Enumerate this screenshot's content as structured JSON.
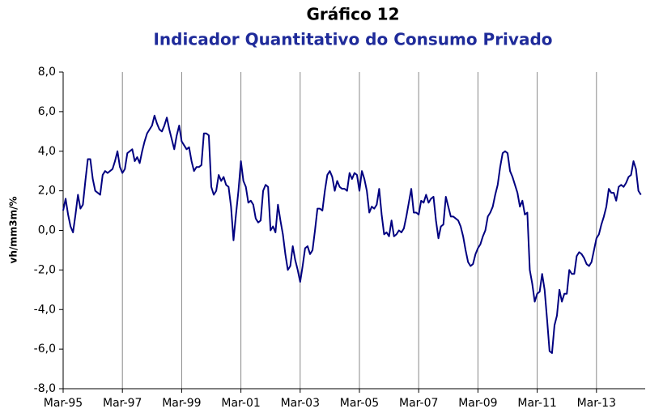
{
  "chart_data": {
    "type": "line",
    "title": "Gráfico 12",
    "subtitle": "Indicador Quantitativo do Consumo Privado",
    "y_label": "vh/mm3m/%",
    "categories": [
      "Mar-95",
      null,
      null,
      null,
      null,
      null,
      null,
      null,
      null,
      null,
      null,
      null,
      null,
      null,
      null,
      null,
      null,
      null,
      null,
      null,
      null,
      null,
      null,
      null,
      "Mar-97",
      null,
      null,
      null,
      null,
      null,
      null,
      null,
      null,
      null,
      null,
      null,
      null,
      null,
      null,
      null,
      null,
      null,
      null,
      null,
      null,
      null,
      null,
      null,
      "Mar-99",
      null,
      null,
      null,
      null,
      null,
      null,
      null,
      null,
      null,
      null,
      null,
      null,
      null,
      null,
      null,
      null,
      null,
      null,
      null,
      null,
      null,
      null,
      null,
      "Mar-01",
      null,
      null,
      null,
      null,
      null,
      null,
      null,
      null,
      null,
      null,
      null,
      null,
      null,
      null,
      null,
      null,
      null,
      null,
      null,
      null,
      null,
      null,
      null,
      "Mar-03",
      null,
      null,
      null,
      null,
      null,
      null,
      null,
      null,
      null,
      null,
      null,
      null,
      null,
      null,
      null,
      null,
      null,
      null,
      null,
      null,
      null,
      null,
      null,
      "Mar-05",
      null,
      null,
      null,
      null,
      null,
      null,
      null,
      null,
      null,
      null,
      null,
      null,
      null,
      null,
      null,
      null,
      null,
      null,
      null,
      null,
      null,
      null,
      null,
      "Mar-07",
      null,
      null,
      null,
      null,
      null,
      null,
      null,
      null,
      null,
      null,
      null,
      null,
      null,
      null,
      null,
      null,
      null,
      null,
      null,
      null,
      null,
      null,
      null,
      "Mar-09",
      null,
      null,
      null,
      null,
      null,
      null,
      null,
      null,
      null,
      null,
      null,
      null,
      null,
      null,
      null,
      null,
      null,
      null,
      null,
      null,
      null,
      null,
      null,
      "Mar-11",
      null,
      null,
      null,
      null,
      null,
      null,
      null,
      null,
      null,
      null,
      null,
      null,
      null,
      null,
      null,
      null,
      null,
      null,
      null,
      null,
      null,
      null,
      null,
      "Mar-13",
      null,
      null,
      null,
      null,
      null,
      null,
      null,
      null,
      null,
      null,
      null,
      null,
      null,
      null,
      null,
      null,
      null,
      null
    ],
    "values": [
      1.0,
      1.6,
      0.8,
      0.2,
      -0.1,
      0.8,
      1.8,
      1.1,
      1.3,
      2.5,
      3.6,
      3.6,
      2.6,
      2.0,
      1.9,
      1.8,
      2.8,
      3.0,
      2.9,
      3.0,
      3.1,
      3.5,
      4.0,
      3.2,
      2.9,
      3.1,
      3.9,
      4.0,
      4.1,
      3.5,
      3.7,
      3.4,
      4.0,
      4.5,
      4.9,
      5.1,
      5.3,
      5.8,
      5.4,
      5.1,
      5.0,
      5.3,
      5.7,
      5.1,
      4.6,
      4.1,
      4.8,
      5.3,
      4.5,
      4.3,
      4.1,
      4.2,
      3.5,
      3.0,
      3.2,
      3.2,
      3.3,
      4.9,
      4.9,
      4.8,
      2.2,
      1.8,
      2.0,
      2.8,
      2.5,
      2.7,
      2.3,
      2.2,
      1.2,
      -0.5,
      0.8,
      2.0,
      3.5,
      2.5,
      2.2,
      1.4,
      1.5,
      1.3,
      0.6,
      0.4,
      0.5,
      2.0,
      2.3,
      2.2,
      0.0,
      0.2,
      -0.1,
      1.3,
      0.5,
      -0.2,
      -1.2,
      -2.0,
      -1.8,
      -0.8,
      -1.5,
      -2.0,
      -2.6,
      -1.8,
      -0.9,
      -0.8,
      -1.2,
      -1.0,
      0.0,
      1.1,
      1.1,
      1.0,
      2.0,
      2.8,
      3.0,
      2.7,
      2.0,
      2.5,
      2.2,
      2.1,
      2.1,
      2.0,
      2.9,
      2.6,
      2.9,
      2.8,
      2.0,
      3.0,
      2.6,
      2.0,
      0.9,
      1.2,
      1.1,
      1.3,
      2.1,
      0.8,
      -0.2,
      -0.1,
      -0.3,
      0.5,
      -0.3,
      -0.2,
      0.0,
      -0.1,
      0.1,
      0.7,
      1.4,
      2.1,
      0.9,
      0.9,
      0.8,
      1.5,
      1.4,
      1.8,
      1.4,
      1.6,
      1.7,
      0.5,
      -0.4,
      0.2,
      0.3,
      1.7,
      1.2,
      0.7,
      0.7,
      0.6,
      0.5,
      0.2,
      -0.3,
      -1.0,
      -1.6,
      -1.8,
      -1.7,
      -1.2,
      -0.9,
      -0.7,
      -0.3,
      0.0,
      0.7,
      0.9,
      1.2,
      1.8,
      2.3,
      3.2,
      3.9,
      4.0,
      3.9,
      3.0,
      2.7,
      2.3,
      1.9,
      1.2,
      1.5,
      0.8,
      0.9,
      -2.0,
      -2.7,
      -3.6,
      -3.2,
      -3.1,
      -2.2,
      -3.0,
      -4.5,
      -6.1,
      -6.2,
      -4.8,
      -4.3,
      -3.0,
      -3.6,
      -3.2,
      -3.2,
      -2.0,
      -2.2,
      -2.2,
      -1.3,
      -1.1,
      -1.2,
      -1.4,
      -1.7,
      -1.8,
      -1.6,
      -1.0,
      -0.4,
      -0.2,
      0.3,
      0.7,
      1.2,
      2.1,
      1.9,
      1.9,
      1.5,
      2.2,
      2.3,
      2.2,
      2.4,
      2.7,
      2.8,
      3.5,
      3.1,
      2.0,
      1.8
    ],
    "color": "#000080",
    "ylim": [
      -8,
      8
    ],
    "yticks": [
      {
        "value": -8,
        "label": "-8,0"
      },
      {
        "value": -6,
        "label": "-6,0"
      },
      {
        "value": -4,
        "label": "-4,0"
      },
      {
        "value": -2,
        "label": "-2,0"
      },
      {
        "value": 0,
        "label": "0,0"
      },
      {
        "value": 2,
        "label": "2,0"
      },
      {
        "value": 4,
        "label": "4,0"
      },
      {
        "value": 6,
        "label": "6,0"
      },
      {
        "value": 8,
        "label": "8,0"
      }
    ],
    "grid": true
  }
}
